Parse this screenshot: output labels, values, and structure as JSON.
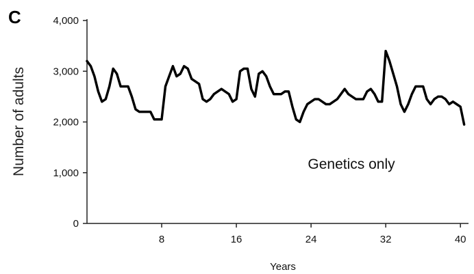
{
  "chart_data": {
    "type": "line",
    "panel_label": "C",
    "xlabel": "Years",
    "ylabel": "Number of adults",
    "annotation": "Genetics only",
    "xlim": [
      0,
      40.5
    ],
    "ylim": [
      0,
      4000
    ],
    "x_ticks": [
      8,
      16,
      24,
      32,
      40
    ],
    "y_ticks": [
      {
        "value": 0,
        "label": "0"
      },
      {
        "value": 1000,
        "label": "1,000"
      },
      {
        "value": 2000,
        "label": "2,000"
      },
      {
        "value": 3000,
        "label": "3,000"
      },
      {
        "value": 4000,
        "label": "4,000"
      }
    ],
    "grid": false,
    "line_color": "#000000",
    "series": [
      {
        "x": [
          0,
          0.4,
          0.8,
          1.2,
          1.6,
          2.0,
          2.4,
          2.8,
          3.2,
          3.6,
          4.0,
          4.4,
          4.8,
          5.2,
          5.6,
          6.0,
          6.4,
          6.8,
          7.2,
          7.6,
          8.0,
          8.4,
          8.8,
          9.2,
          9.6,
          10.0,
          10.4,
          10.8,
          11.2,
          11.6,
          12.0,
          12.4,
          12.8,
          13.2,
          13.6,
          14.0,
          14.4,
          14.8,
          15.2,
          15.6,
          16.0,
          16.4,
          16.8,
          17.2,
          17.6,
          18.0,
          18.4,
          18.8,
          19.2,
          19.6,
          20.0,
          20.4,
          20.8,
          21.2,
          21.6,
          22.0,
          22.4,
          22.8,
          23.2,
          23.6,
          24.0,
          24.4,
          24.8,
          25.2,
          25.6,
          26.0,
          26.4,
          26.8,
          27.2,
          27.6,
          28.0,
          28.4,
          28.8,
          29.2,
          29.6,
          30.0,
          30.4,
          30.8,
          31.2,
          31.6,
          32.0,
          32.4,
          32.8,
          33.2,
          33.6,
          34.0,
          34.4,
          34.8,
          35.2,
          35.6,
          36.0,
          36.4,
          36.8,
          37.2,
          37.6,
          38.0,
          38.4,
          38.8,
          39.2,
          39.6,
          40.0,
          40.4
        ],
        "values": [
          3200,
          3100,
          2900,
          2600,
          2400,
          2450,
          2700,
          3050,
          2950,
          2700,
          2700,
          2700,
          2500,
          2250,
          2200,
          2200,
          2200,
          2200,
          2050,
          2050,
          2050,
          2700,
          2900,
          3100,
          2900,
          2950,
          3100,
          3050,
          2850,
          2800,
          2750,
          2450,
          2400,
          2450,
          2550,
          2600,
          2650,
          2600,
          2550,
          2400,
          2450,
          3000,
          3050,
          3050,
          2650,
          2500,
          2950,
          3000,
          2900,
          2700,
          2550,
          2550,
          2550,
          2600,
          2600,
          2300,
          2050,
          2000,
          2200,
          2350,
          2400,
          2450,
          2450,
          2400,
          2350,
          2350,
          2400,
          2450,
          2550,
          2650,
          2550,
          2500,
          2450,
          2450,
          2450,
          2600,
          2650,
          2550,
          2400,
          2400,
          3400,
          3200,
          2950,
          2700,
          2350,
          2200,
          2350,
          2550,
          2700,
          2700,
          2700,
          2450,
          2350,
          2450,
          2500,
          2500,
          2450,
          2350,
          2400,
          2350,
          2300,
          1950
        ]
      }
    ]
  }
}
